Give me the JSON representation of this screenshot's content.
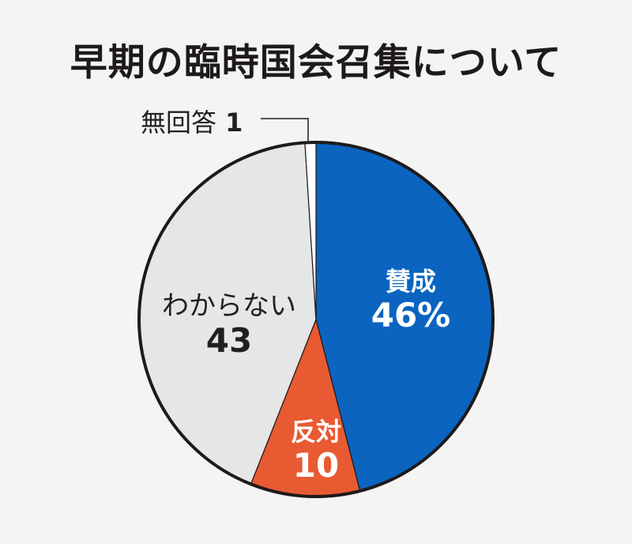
{
  "title": "早期の臨時国会召集について",
  "chart_data": {
    "type": "pie",
    "title": "早期の臨時国会召集について",
    "start_angle": "12 o'clock",
    "direction": "clockwise",
    "unit": "%",
    "slices": [
      {
        "label": "賛成",
        "value": 46,
        "display": "46%",
        "color": "#0a64c0"
      },
      {
        "label": "反対",
        "value": 10,
        "display": "10",
        "color": "#e85a32"
      },
      {
        "label": "わからない",
        "value": 43,
        "display": "43",
        "color": "#e6e6e6"
      },
      {
        "label": "無回答",
        "value": 1,
        "display": "1",
        "color": "#ffffff"
      }
    ]
  },
  "labels": {
    "yes": {
      "name": "賛成",
      "value": "46%"
    },
    "no": {
      "name": "反対",
      "value": "10"
    },
    "dontknow": {
      "name": "わからない",
      "value": "43"
    },
    "noanswer": {
      "name": "無回答",
      "value": "1"
    }
  }
}
